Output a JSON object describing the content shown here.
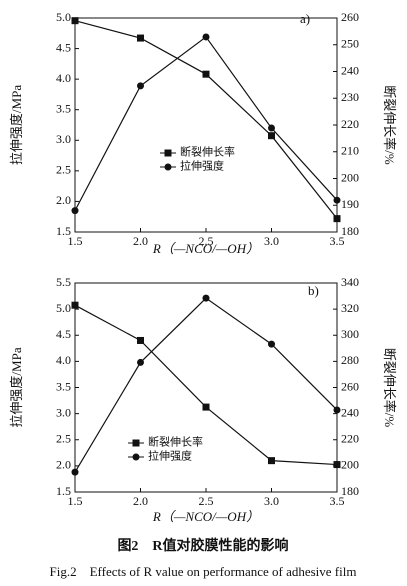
{
  "chart_data": [
    {
      "type": "line",
      "panel_label": "a)",
      "xlabel": "R（—NCO/—OH）",
      "ylabel": "拉伸强度/MPa",
      "y2label": "断裂伸长率/%",
      "x": [
        1.5,
        2.0,
        2.5,
        3.0,
        3.5
      ],
      "xlim": [
        1.5,
        3.5
      ],
      "xticks": [
        1.5,
        {
          "value": 2,
          "label": "2.0"
        },
        2.5,
        {
          "value": 3,
          "label": "3.0"
        },
        3.5
      ],
      "ylim": [
        1.5,
        5.0
      ],
      "yticks": [
        1.5,
        {
          "value": 2,
          "label": "2.0"
        },
        2.5,
        {
          "value": 3,
          "label": "3.0"
        },
        3.5,
        {
          "value": 4,
          "label": "4.0"
        },
        4.5,
        {
          "value": 5,
          "label": "5.0"
        }
      ],
      "y2lim": [
        180,
        260
      ],
      "y2ticks": [
        180,
        190,
        200,
        210,
        220,
        230,
        240,
        250,
        260
      ],
      "series": [
        {
          "name": "断裂伸长率",
          "color": "#111111",
          "marker": "square",
          "axis": "y2",
          "values": [
            259,
            252.5,
            239,
            216,
            185
          ]
        },
        {
          "name": "拉伸强度",
          "color": "#111111",
          "marker": "circle",
          "axis": "y",
          "values": [
            1.85,
            3.89,
            4.69,
            3.2,
            2.02
          ]
        }
      ]
    },
    {
      "type": "line",
      "panel_label": "b)",
      "xlabel": "R（—NCO/—OH）",
      "ylabel": "拉伸强度/MPa",
      "y2label": "断裂伸长率/%",
      "x": [
        1.5,
        2.0,
        2.5,
        3.0,
        3.5
      ],
      "xlim": [
        1.5,
        3.5
      ],
      "xticks": [
        1.5,
        {
          "value": 2,
          "label": "2.0"
        },
        2.5,
        {
          "value": 3,
          "label": "3.0"
        },
        3.5
      ],
      "ylim": [
        1.5,
        5.5
      ],
      "yticks": [
        1.5,
        {
          "value": 2,
          "label": "2.0"
        },
        2.5,
        {
          "value": 3,
          "label": "3.0"
        },
        3.5,
        {
          "value": 4,
          "label": "4.0"
        },
        4.5,
        {
          "value": 5,
          "label": "5.0"
        },
        5.5
      ],
      "y2lim": [
        180,
        340
      ],
      "y2ticks": [
        180,
        200,
        220,
        240,
        260,
        280,
        300,
        320,
        340
      ],
      "series": [
        {
          "name": "断裂伸长率",
          "color": "#111111",
          "marker": "square",
          "axis": "y2",
          "values": [
            323,
            296,
            245,
            204,
            201
          ]
        },
        {
          "name": "拉伸强度",
          "color": "#111111",
          "marker": "circle",
          "axis": "y",
          "values": [
            1.88,
            3.98,
            5.21,
            4.33,
            3.07
          ]
        }
      ]
    }
  ],
  "caption": {
    "cn": "图2　R值对胶膜性能的影响",
    "en": "Fig.2　Effects of R value on performance of adhesive film"
  }
}
